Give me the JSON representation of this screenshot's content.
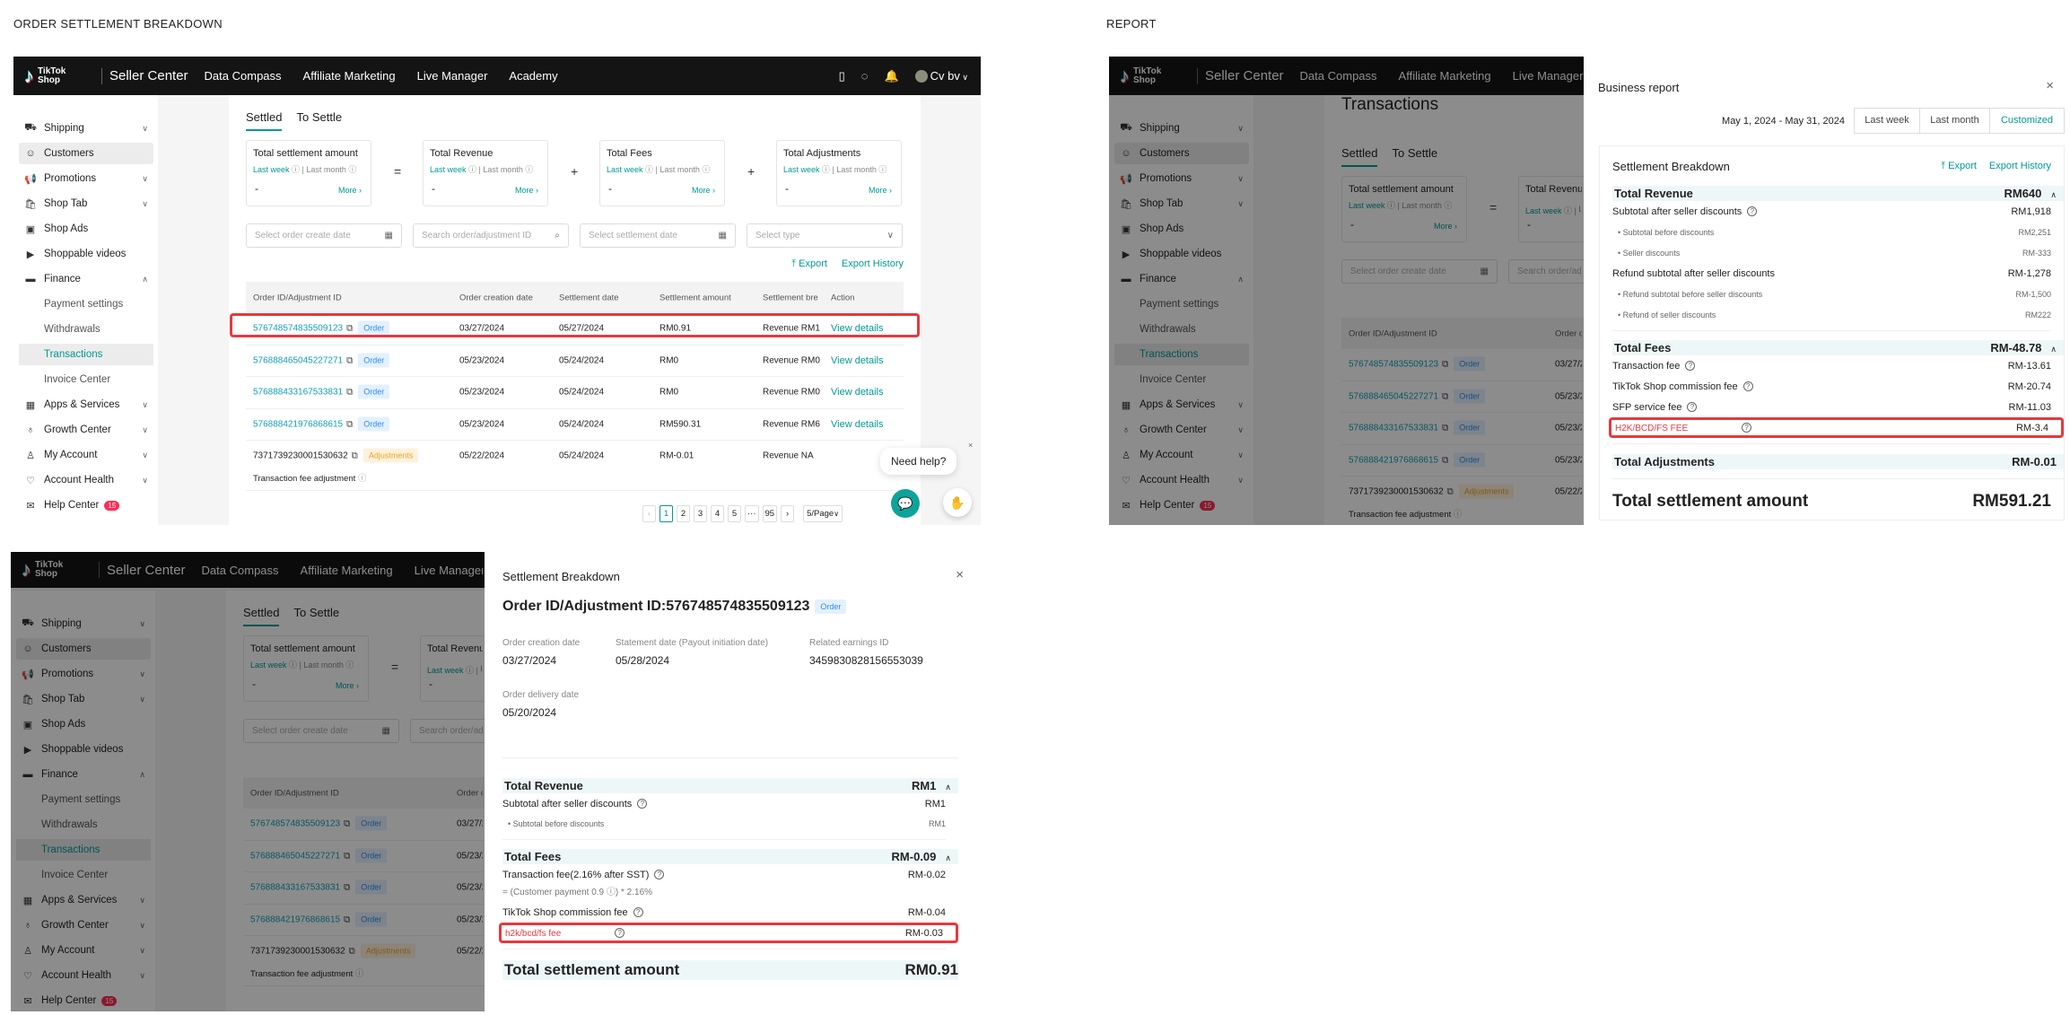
{
  "captions": {
    "left": "ORDER SETTLEMENT BREAKDOWN",
    "right": "REPORT"
  },
  "colors": {
    "accent": "#009995",
    "highlight": "#e8383d",
    "topbar": "#141414",
    "order_tag": "#2e8cf0",
    "adjust_tag": "#f0a020"
  },
  "topbar": {
    "logo_text": [
      "TikTok",
      "Shop"
    ],
    "app_name": "Seller Center",
    "nav": [
      "Data Compass",
      "Affiliate Marketing",
      "Live Manager",
      "Academy"
    ],
    "user": "Cv bv"
  },
  "sidebar": {
    "items": [
      {
        "label": "Shipping",
        "icon": "truck-icon",
        "glyph": "⛟",
        "chev": "∨"
      },
      {
        "label": "Customers",
        "icon": "users-icon",
        "glyph": "☺",
        "selected": true
      },
      {
        "label": "Promotions",
        "icon": "megaphone-icon",
        "glyph": "📢",
        "chev": "∨"
      },
      {
        "label": "Shop Tab",
        "icon": "bag-icon",
        "glyph": "🛍",
        "chev": "∨"
      },
      {
        "label": "Shop Ads",
        "icon": "ad-icon",
        "glyph": "▣"
      },
      {
        "label": "Shoppable videos",
        "icon": "video-icon",
        "glyph": "▶"
      },
      {
        "label": "Finance",
        "icon": "wallet-icon",
        "glyph": "▬",
        "chev": "∧"
      },
      {
        "label": "Payment settings",
        "sub": true
      },
      {
        "label": "Withdrawals",
        "sub": true
      },
      {
        "label": "Transactions",
        "sub": true,
        "active": true
      },
      {
        "label": "Invoice Center",
        "sub": true
      },
      {
        "label": "Apps & Services",
        "icon": "grid-icon",
        "glyph": "▦",
        "chev": "∨"
      },
      {
        "label": "Growth Center",
        "icon": "medal-icon",
        "glyph": "♁",
        "chev": "∨"
      },
      {
        "label": "My Account",
        "icon": "user-icon",
        "glyph": "♙",
        "chev": "∨"
      },
      {
        "label": "Account Health",
        "icon": "shield-icon",
        "glyph": "♡",
        "chev": "∨"
      },
      {
        "label": "Help Center",
        "icon": "help-icon",
        "glyph": "✉",
        "badge": "15"
      }
    ]
  },
  "transactions": {
    "page_title": "Transactions",
    "tabs": [
      "Settled",
      "To Settle"
    ],
    "summary": [
      {
        "title": "Total settlement amount",
        "value": "-"
      },
      {
        "title": "Total Revenue",
        "value": "-"
      },
      {
        "title": "Total Fees",
        "value": "-"
      },
      {
        "title": "Total Adjustments",
        "value": "-"
      }
    ],
    "operators": [
      "=",
      "+",
      "+"
    ],
    "period_last_week": "Last week",
    "period_last_month": "Last month",
    "more": "More",
    "filters": [
      "Select order create date",
      "Search order/adjustment ID",
      "Select settlement date",
      "Select type"
    ],
    "export": "Export",
    "export_history": "Export History",
    "columns": [
      "Order ID/Adjustment ID",
      "Order creation date",
      "Settlement date",
      "Settlement amount",
      "Settlement bre",
      "Action"
    ],
    "rows": [
      {
        "id": "576748574835509123",
        "tag": "Order",
        "created": "03/27/2024",
        "settled": "05/27/2024",
        "amount": "RM0.91",
        "breakdown": "Revenue RM1",
        "action": "View details"
      },
      {
        "id": "576888465045227271",
        "tag": "Order",
        "created": "05/23/2024",
        "settled": "05/24/2024",
        "amount": "RM0",
        "breakdown": "Revenue RM0",
        "action": "View details"
      },
      {
        "id": "576888433167533831",
        "tag": "Order",
        "created": "05/23/2024",
        "settled": "05/24/2024",
        "amount": "RM0",
        "breakdown": "Revenue RM0",
        "action": "View details"
      },
      {
        "id": "576888421976868615",
        "tag": "Order",
        "created": "05/23/2024",
        "settled": "05/24/2024",
        "amount": "RM590.31",
        "breakdown": "Revenue RM6",
        "action": "View details"
      },
      {
        "id": "737173923000153063​2",
        "tag": "Adjustments",
        "created": "05/22/2024",
        "settled": "05/24/2024",
        "amount": "RM-0.01",
        "breakdown": "Revenue NA",
        "action": "",
        "note": "Transaction fee adjustment"
      }
    ],
    "pagination": {
      "pages": [
        "1",
        "2",
        "3",
        "4",
        "5",
        "···",
        "95"
      ],
      "current": "1",
      "page_size": "5/Page"
    },
    "need_help": "Need help?"
  },
  "report": {
    "title": "Business report",
    "date_range": "May 1, 2024 - May 31, 2024",
    "range_buttons": [
      "Last week",
      "Last month",
      "Customized"
    ],
    "selected_range": "Customized",
    "breakdown_title": "Settlement Breakdown",
    "export": "Export",
    "export_history": "Export History",
    "revenue": {
      "label": "Total Revenue",
      "value": "RM640",
      "lines": [
        {
          "label": "Subtotal after seller discounts",
          "value": "RM1,918",
          "help": true
        },
        {
          "label": "Subtotal before discounts",
          "value": "RM2,251",
          "minor": true
        },
        {
          "label": "Seller discounts",
          "value": "RM-333",
          "minor": true
        },
        {
          "label": "Refund subtotal after seller discounts",
          "value": "RM-1,278"
        },
        {
          "label": "Refund subtotal before seller discounts",
          "value": "RM-1,500",
          "minor": true
        },
        {
          "label": "Refund of seller discounts",
          "value": "RM222",
          "minor": true
        }
      ]
    },
    "fees": {
      "label": "Total Fees",
      "value": "RM-48.78",
      "lines": [
        {
          "label": "Transaction fee",
          "value": "RM-13.61",
          "help": true
        },
        {
          "label": "TikTok Shop commission fee",
          "value": "RM-20.74",
          "help": true
        },
        {
          "label": "SFP service fee",
          "value": "RM-11.03",
          "help": true
        },
        {
          "label": "H2K/BCD/FS FEE",
          "value": "RM-3.4",
          "help": true,
          "highlight": true
        }
      ]
    },
    "adjustments": {
      "label": "Total Adjustments",
      "value": "RM-0.01"
    },
    "total": {
      "label": "Total settlement amount",
      "value": "RM591.21"
    }
  },
  "order_breakdown": {
    "title": "Settlement Breakdown",
    "order_id_label": "Order ID/Adjustment ID:",
    "order_id": "576748574835509123",
    "tag": "Order",
    "meta": [
      {
        "label": "Order creation date",
        "value": "03/27/2024"
      },
      {
        "label": "Statement date (Payout initiation date)",
        "value": "05/28/2024"
      },
      {
        "label": "Related earnings ID",
        "value": "345983082815655303​9"
      }
    ],
    "delivery": {
      "label": "Order delivery date",
      "value": "05/20/2024"
    },
    "revenue": {
      "label": "Total Revenue",
      "value": "RM1",
      "lines": [
        {
          "label": "Subtotal after seller discounts",
          "value": "RM1",
          "help": true
        },
        {
          "label": "Subtotal before discounts",
          "value": "RM1",
          "minor": true
        }
      ]
    },
    "fees": {
      "label": "Total Fees",
      "value": "RM-0.09",
      "lines": [
        {
          "label": "Transaction fee(2.16% after SST)",
          "value": "RM-0.02",
          "help": true,
          "formula": "= (Customer payment 0.9 ⓘ) * 2.16%"
        },
        {
          "label": "TikTok Shop commission fee",
          "value": "RM-0.04",
          "help": true
        },
        {
          "label": "h2k/bcd/fs fee",
          "value": "RM-0.03",
          "help": true,
          "highlight": true
        }
      ]
    },
    "total": {
      "label": "Total settlement amount",
      "value": "RM0.91"
    }
  }
}
